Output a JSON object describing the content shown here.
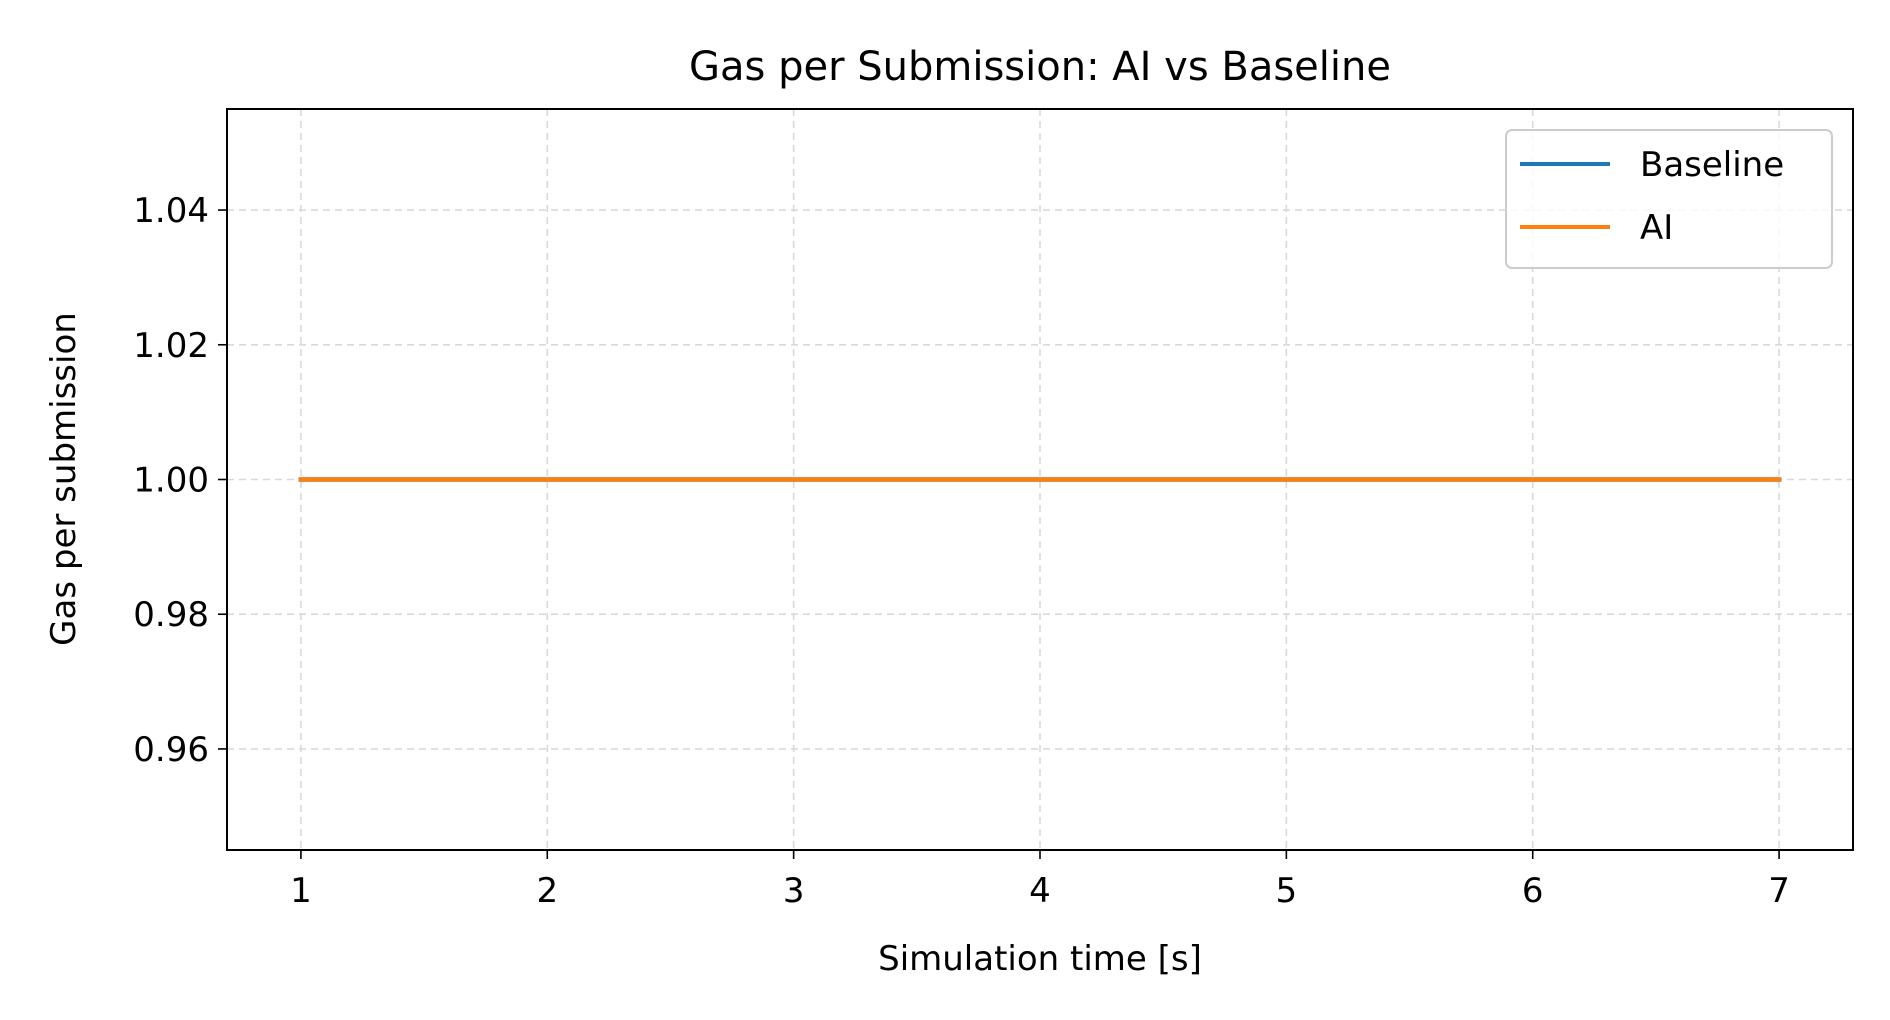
{
  "chart_data": {
    "type": "line",
    "title": "Gas per Submission: AI vs Baseline",
    "xlabel": "Simulation time [s]",
    "ylabel": "Gas per submission",
    "x": [
      1,
      2,
      3,
      4,
      5,
      6,
      7
    ],
    "xlim": [
      0.7,
      7.3
    ],
    "ylim": [
      0.945,
      1.055
    ],
    "xticks": [
      1,
      2,
      3,
      4,
      5,
      6,
      7
    ],
    "yticks": [
      0.96,
      0.98,
      1.0,
      1.02,
      1.04
    ],
    "ytick_labels": [
      "0.96",
      "0.98",
      "1.00",
      "1.02",
      "1.04"
    ],
    "grid": true,
    "legend_position": "top-right",
    "series": [
      {
        "name": "Baseline",
        "color": "#1f77b4",
        "values": [
          1.0,
          1.0,
          1.0,
          1.0,
          1.0,
          1.0,
          1.0
        ]
      },
      {
        "name": "AI",
        "color": "#ff7f0e",
        "values": [
          1.0,
          1.0,
          1.0,
          1.0,
          1.0,
          1.0,
          1.0
        ]
      }
    ]
  }
}
